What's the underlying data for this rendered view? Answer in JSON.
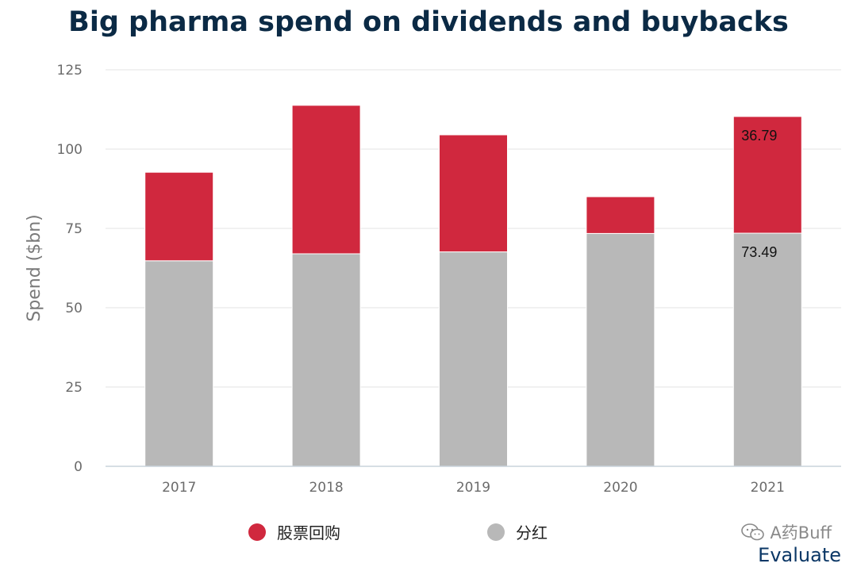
{
  "chart_data": {
    "type": "bar",
    "stacked": true,
    "title": "Big pharma spend on dividends and buybacks",
    "ylabel": "Spend ($bn)",
    "xlabel": "",
    "ylim": [
      0,
      125
    ],
    "yticks": [
      0,
      25,
      50,
      75,
      100,
      125
    ],
    "grid": true,
    "legend_position": "bottom",
    "categories": [
      "2017",
      "2018",
      "2019",
      "2020",
      "2021"
    ],
    "series": [
      {
        "name": "分红",
        "color": "#b8b8b8",
        "values": [
          64.8,
          67.0,
          67.6,
          73.4,
          73.49
        ]
      },
      {
        "name": "股票回购",
        "color": "#d0283e",
        "values": [
          27.9,
          46.8,
          36.9,
          11.6,
          36.79
        ]
      }
    ],
    "data_labels": [
      {
        "category": "2021",
        "series": "股票回购",
        "text": "36.79"
      },
      {
        "category": "2021",
        "series": "分红",
        "text": "73.49"
      }
    ]
  },
  "legend": [
    {
      "label": "股票回购",
      "color": "#d0283e"
    },
    {
      "label": "分红",
      "color": "#b8b8b8"
    }
  ],
  "watermark": {
    "text": "A药Buff",
    "icon": "wechat-icon"
  },
  "brand": "Evaluate"
}
